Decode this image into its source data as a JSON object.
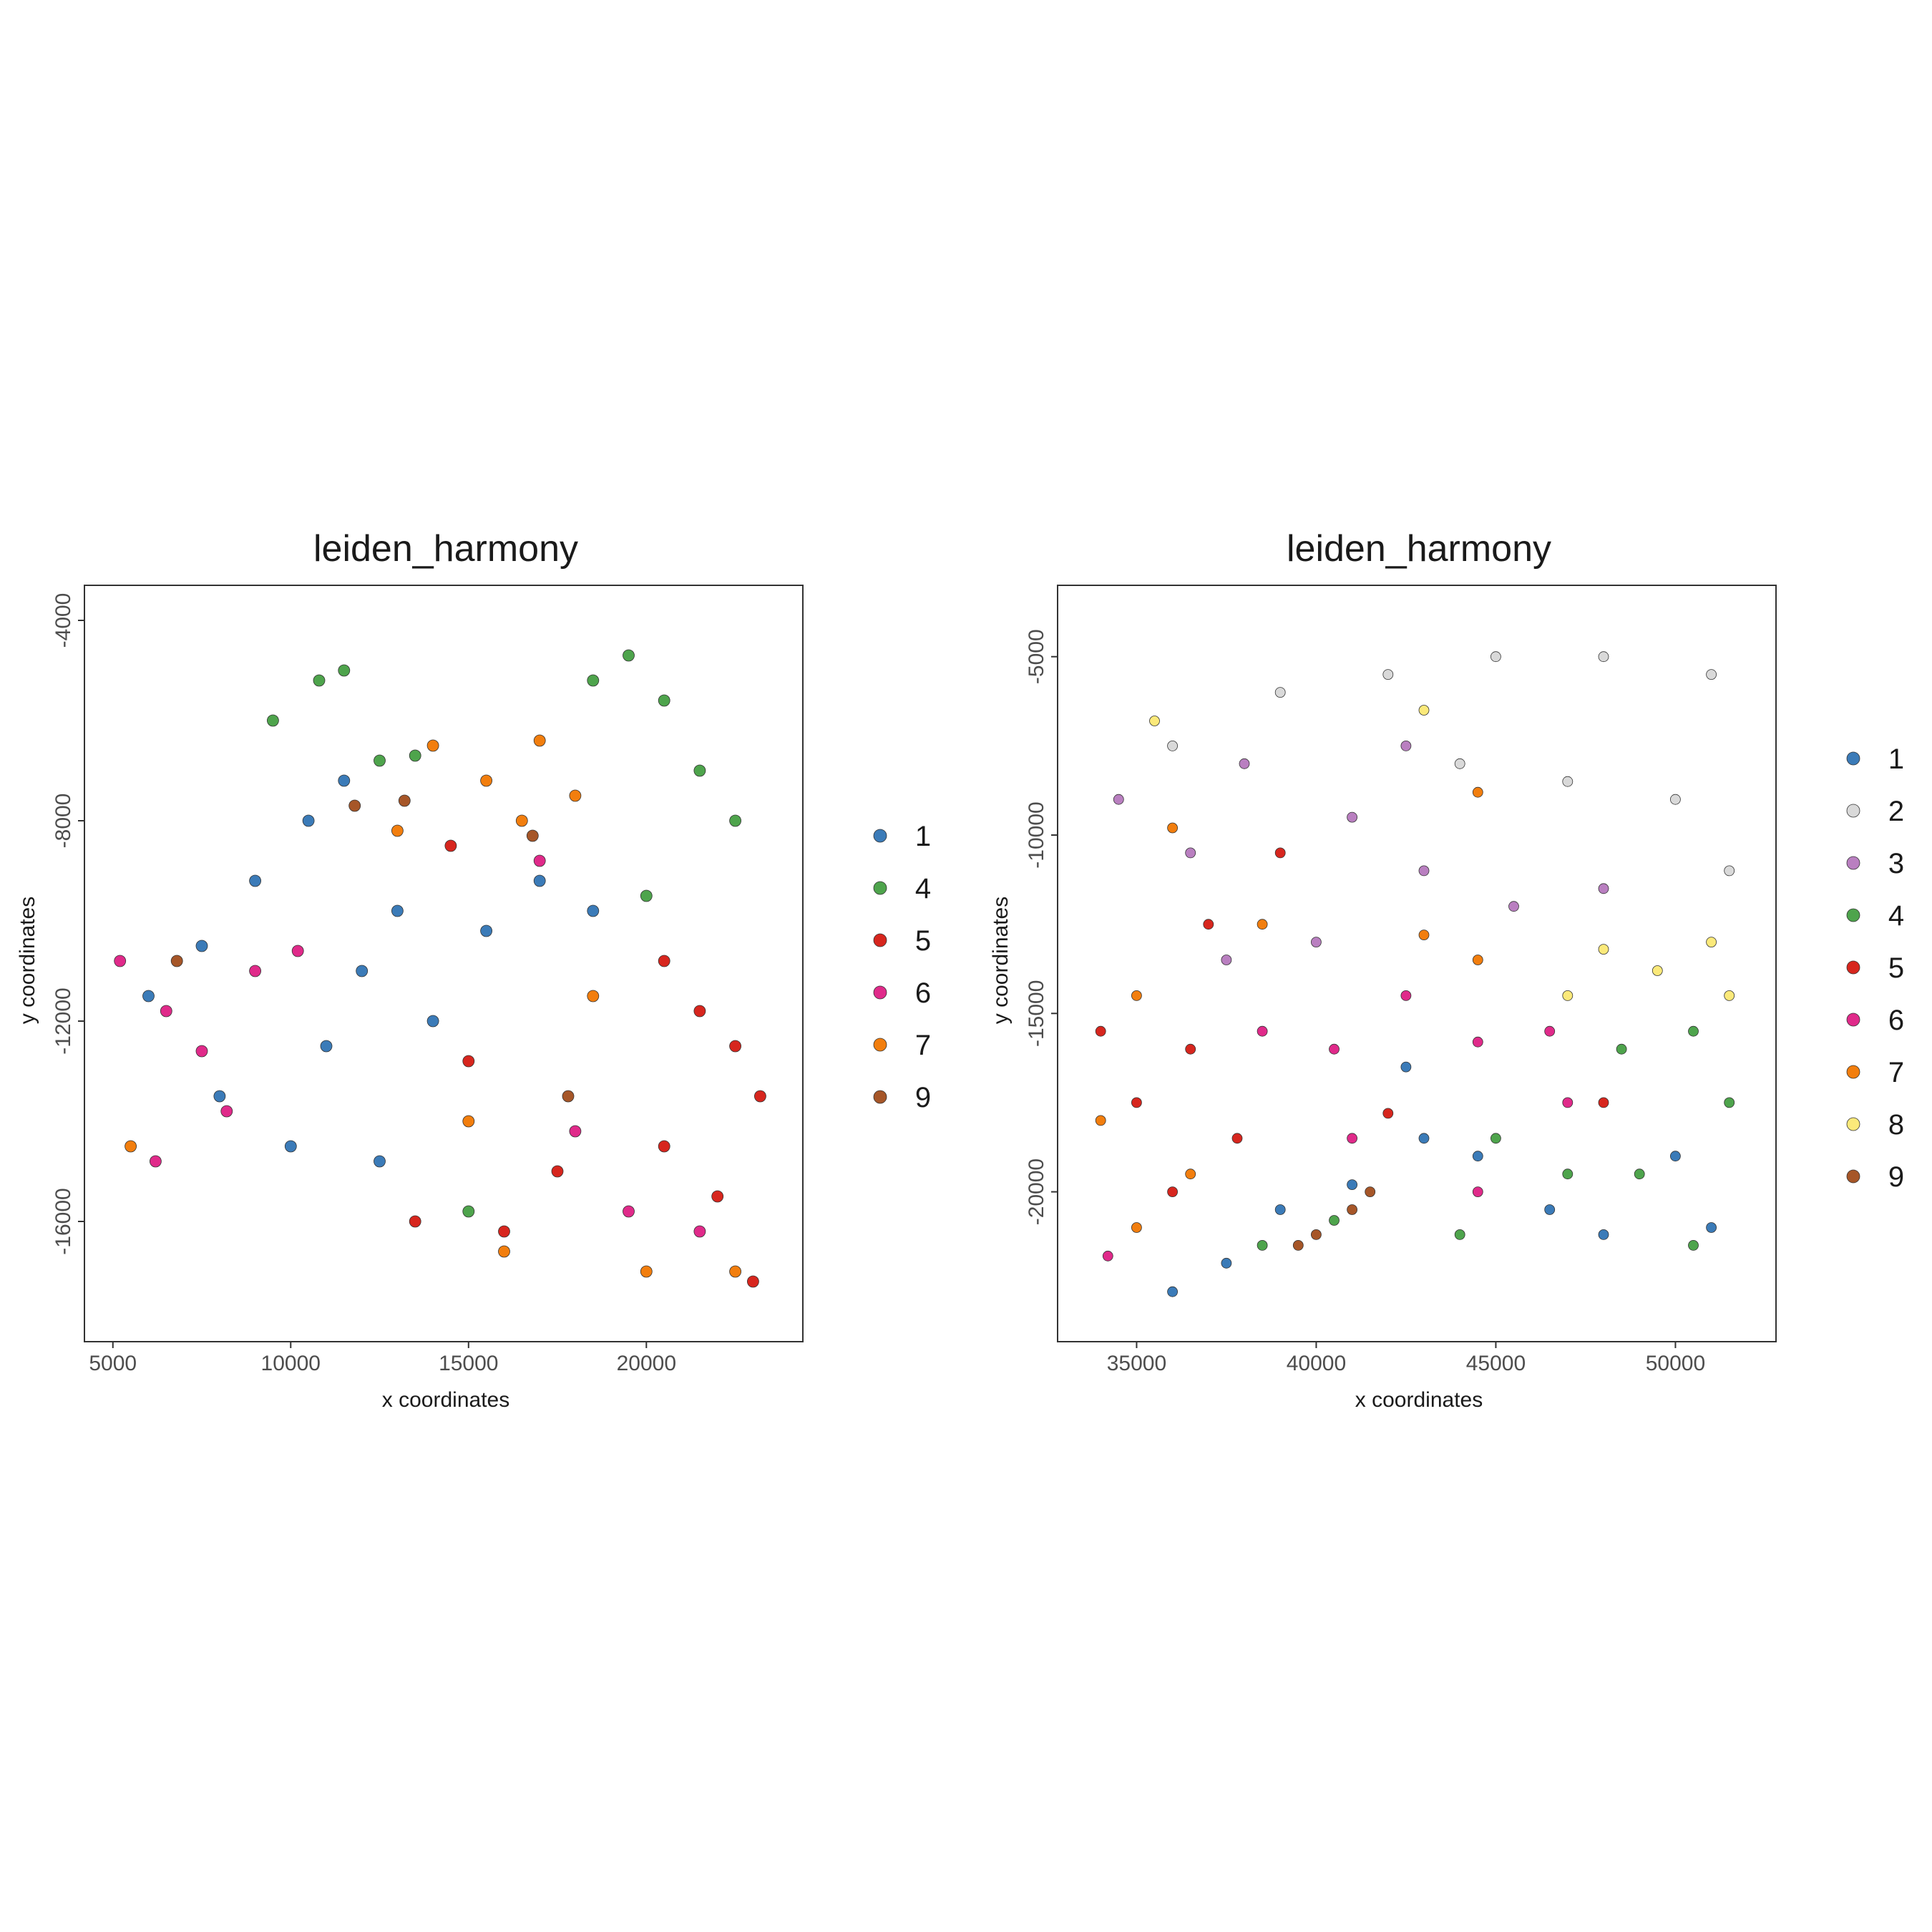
{
  "palette": {
    "1": "#3b7bb8",
    "2": "#d9d9d9",
    "3": "#b97fc0",
    "4": "#4ea44c",
    "5": "#d7261e",
    "6": "#e02a8a",
    "7": "#f27e0e",
    "8": "#fbe97a",
    "9": "#a65628"
  },
  "chart_data": [
    {
      "type": "scatter",
      "title": "leiden_harmony",
      "xlabel": "x coordinates",
      "ylabel": "y coordinates",
      "xlim": [
        4200,
        24400
      ],
      "ylim": [
        -18400,
        -3300
      ],
      "xticks": [
        5000,
        10000,
        15000,
        20000
      ],
      "xtick_labels": [
        "5000",
        "10000",
        "15000",
        "20000"
      ],
      "yticks": [
        -4000,
        -8000,
        -12000,
        -16000
      ],
      "ytick_labels": [
        "-4000",
        "-8000",
        "-12000",
        "-16000"
      ],
      "grid": false,
      "legend_position": "right",
      "legend": [
        "1",
        "4",
        "5",
        "6",
        "7",
        "9"
      ],
      "series": [
        {
          "name": "1",
          "points": [
            [
              6000,
              -11500
            ],
            [
              7500,
              -10500
            ],
            [
              9000,
              -9200
            ],
            [
              10500,
              -8000
            ],
            [
              11000,
              -12500
            ],
            [
              12000,
              -11000
            ],
            [
              13000,
              -9800
            ],
            [
              14000,
              -12000
            ],
            [
              15500,
              -10200
            ],
            [
              17000,
              -9200
            ],
            [
              18500,
              -9800
            ],
            [
              8000,
              -13500
            ],
            [
              10000,
              -14500
            ],
            [
              12500,
              -14800
            ],
            [
              11500,
              -7200
            ]
          ]
        },
        {
          "name": "4",
          "points": [
            [
              9500,
              -6000
            ],
            [
              10800,
              -5200
            ],
            [
              11500,
              -5000
            ],
            [
              12500,
              -6800
            ],
            [
              13500,
              -6700
            ],
            [
              18500,
              -5200
            ],
            [
              19500,
              -4700
            ],
            [
              20500,
              -5600
            ],
            [
              21500,
              -7000
            ],
            [
              22500,
              -8000
            ],
            [
              20000,
              -9500
            ],
            [
              15000,
              -15800
            ]
          ]
        },
        {
          "name": "5",
          "points": [
            [
              20500,
              -10800
            ],
            [
              21500,
              -11800
            ],
            [
              22500,
              -12500
            ],
            [
              23200,
              -13500
            ],
            [
              20500,
              -14500
            ],
            [
              22000,
              -15500
            ],
            [
              23000,
              -17200
            ],
            [
              17500,
              -15000
            ],
            [
              16000,
              -16200
            ],
            [
              13500,
              -16000
            ],
            [
              15000,
              -12800
            ],
            [
              14500,
              -8500
            ]
          ]
        },
        {
          "name": "6",
          "points": [
            [
              5200,
              -10800
            ],
            [
              6500,
              -11800
            ],
            [
              7500,
              -12600
            ],
            [
              8200,
              -13800
            ],
            [
              6200,
              -14800
            ],
            [
              9000,
              -11000
            ],
            [
              10200,
              -10600
            ],
            [
              18000,
              -14200
            ],
            [
              19500,
              -15800
            ],
            [
              21500,
              -16200
            ],
            [
              17000,
              -8800
            ]
          ]
        },
        {
          "name": "7",
          "points": [
            [
              14000,
              -6500
            ],
            [
              15500,
              -7200
            ],
            [
              16500,
              -8000
            ],
            [
              18000,
              -7500
            ],
            [
              17000,
              -6400
            ],
            [
              15000,
              -14000
            ],
            [
              16000,
              -16600
            ],
            [
              20000,
              -17000
            ],
            [
              22500,
              -17000
            ],
            [
              5500,
              -14500
            ],
            [
              18500,
              -11500
            ],
            [
              13000,
              -8200
            ]
          ]
        },
        {
          "name": "9",
          "points": [
            [
              11800,
              -7700
            ],
            [
              13200,
              -7600
            ],
            [
              16800,
              -8300
            ],
            [
              6800,
              -10800
            ],
            [
              17800,
              -13500
            ]
          ]
        }
      ]
    },
    {
      "type": "scatter",
      "title": "leiden_harmony",
      "xlabel": "x coordinates",
      "ylabel": "y coordinates",
      "xlim": [
        32800,
        52800
      ],
      "ylim": [
        -24200,
        -3000
      ],
      "xticks": [
        35000,
        40000,
        45000,
        50000
      ],
      "xtick_labels": [
        "35000",
        "40000",
        "45000",
        "50000"
      ],
      "yticks": [
        -5000,
        -10000,
        -15000,
        -20000
      ],
      "ytick_labels": [
        "-5000",
        "-10000",
        "-15000",
        "-20000"
      ],
      "grid": false,
      "legend_position": "right",
      "legend": [
        "1",
        "2",
        "3",
        "4",
        "5",
        "6",
        "7",
        "8",
        "9"
      ],
      "series": [
        {
          "name": "1",
          "points": [
            [
              36000,
              -22800
            ],
            [
              37500,
              -22000
            ],
            [
              39000,
              -20500
            ],
            [
              41000,
              -19800
            ],
            [
              43000,
              -18500
            ],
            [
              44500,
              -19000
            ],
            [
              46500,
              -20500
            ],
            [
              48000,
              -21200
            ],
            [
              50000,
              -19000
            ],
            [
              51000,
              -21000
            ],
            [
              42500,
              -16500
            ]
          ]
        },
        {
          "name": "2",
          "points": [
            [
              39000,
              -6000
            ],
            [
              42000,
              -5500
            ],
            [
              45000,
              -5000
            ],
            [
              48000,
              -5000
            ],
            [
              51000,
              -5500
            ],
            [
              44000,
              -8000
            ],
            [
              47000,
              -8500
            ],
            [
              50000,
              -9000
            ],
            [
              36000,
              -7500
            ],
            [
              51500,
              -11000
            ]
          ]
        },
        {
          "name": "3",
          "points": [
            [
              34500,
              -9000
            ],
            [
              36500,
              -10500
            ],
            [
              38000,
              -8000
            ],
            [
              41000,
              -9500
            ],
            [
              43000,
              -11000
            ],
            [
              45500,
              -12000
            ],
            [
              48000,
              -11500
            ],
            [
              37500,
              -13500
            ],
            [
              40000,
              -13000
            ],
            [
              42500,
              -7500
            ]
          ]
        },
        {
          "name": "4",
          "points": [
            [
              48500,
              -16000
            ],
            [
              50500,
              -15500
            ],
            [
              51500,
              -17500
            ],
            [
              49000,
              -19500
            ],
            [
              50500,
              -21500
            ],
            [
              47000,
              -19500
            ],
            [
              45000,
              -18500
            ],
            [
              38500,
              -21500
            ],
            [
              40500,
              -20800
            ],
            [
              44000,
              -21200
            ]
          ]
        },
        {
          "name": "5",
          "points": [
            [
              34000,
              -15500
            ],
            [
              35000,
              -17500
            ],
            [
              36500,
              -16000
            ],
            [
              37000,
              -12500
            ],
            [
              39000,
              -10500
            ],
            [
              37800,
              -18500
            ],
            [
              42000,
              -17800
            ],
            [
              36000,
              -20000
            ],
            [
              48000,
              -17500
            ]
          ]
        },
        {
          "name": "6",
          "points": [
            [
              38500,
              -15500
            ],
            [
              40500,
              -16000
            ],
            [
              42500,
              -14500
            ],
            [
              44500,
              -15800
            ],
            [
              46500,
              -15500
            ],
            [
              47000,
              -17500
            ],
            [
              44500,
              -20000
            ],
            [
              34200,
              -21800
            ],
            [
              41000,
              -18500
            ]
          ]
        },
        {
          "name": "7",
          "points": [
            [
              34000,
              -18000
            ],
            [
              35000,
              -21000
            ],
            [
              36500,
              -19500
            ],
            [
              36000,
              -9800
            ],
            [
              38500,
              -12500
            ],
            [
              44500,
              -13500
            ],
            [
              43000,
              -12800
            ],
            [
              35000,
              -14500
            ],
            [
              44500,
              -8800
            ]
          ]
        },
        {
          "name": "8",
          "points": [
            [
              48000,
              -13200
            ],
            [
              49500,
              -13800
            ],
            [
              51000,
              -13000
            ],
            [
              51500,
              -14500
            ],
            [
              47000,
              -14500
            ],
            [
              35500,
              -6800
            ],
            [
              43000,
              -6500
            ]
          ]
        },
        {
          "name": "9",
          "points": [
            [
              40000,
              -21200
            ],
            [
              41000,
              -20500
            ],
            [
              41500,
              -20000
            ],
            [
              39500,
              -21500
            ]
          ]
        }
      ]
    }
  ]
}
